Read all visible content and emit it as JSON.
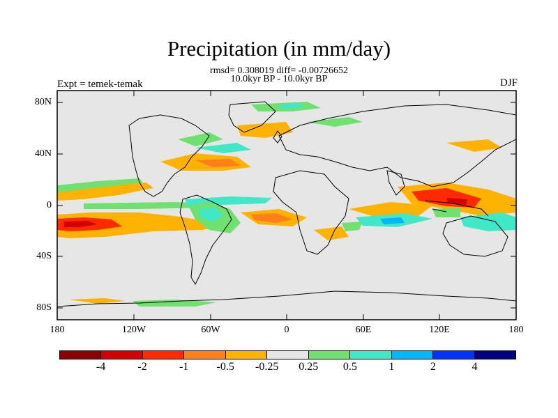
{
  "title": "Precipitation (in mm/day)",
  "stats_line": "rmsd= 0.308019 diff= -0.00726652",
  "period_line": "10.0kyr BP - 10.0kyr BP",
  "experiment": "Expt = temek-temak",
  "season": "DJF",
  "lat_labels": [
    "80N",
    "40N",
    "0",
    "40S",
    "80S"
  ],
  "lon_labels": [
    "180",
    "120W",
    "60W",
    "0",
    "60E",
    "120E",
    "180"
  ],
  "legend": {
    "labels": [
      "-4",
      "-2",
      "-1",
      "-0.5",
      "-0.25",
      "0.25",
      "0.5",
      "1",
      "2",
      "4"
    ],
    "colors": [
      "#8b0000",
      "#d20000",
      "#ff2a00",
      "#ff7f1a",
      "#ffb300",
      "#e6e6e6",
      "#70e070",
      "#40e8c8",
      "#00b6ff",
      "#0033ff",
      "#000080"
    ]
  },
  "colors": {
    "background": "#e6e6e6",
    "coast": "#000000"
  }
}
